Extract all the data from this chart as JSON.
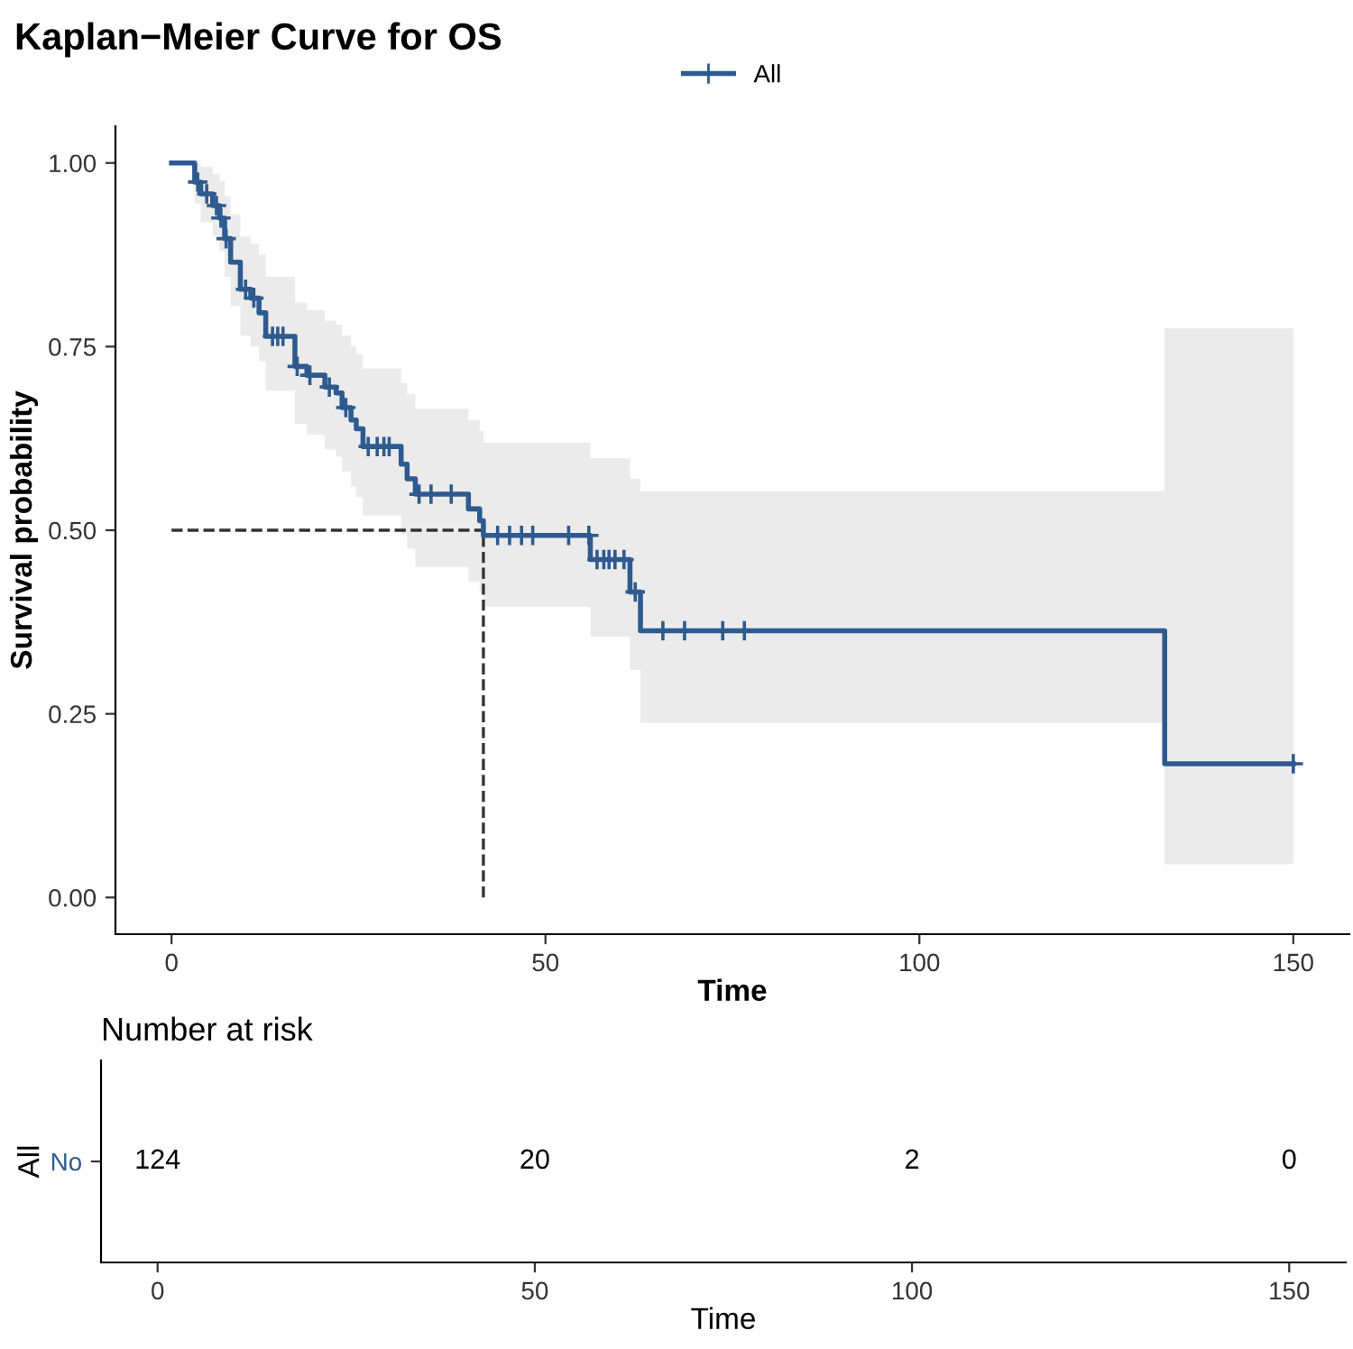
{
  "chart_data": [
    {
      "type": "step",
      "title": "Kaplan−Meier Curve for OS",
      "xlabel": "Time",
      "ylabel": "Survival probability",
      "xlim": [
        -7.5,
        157.5
      ],
      "xticks": [
        0,
        50,
        100,
        150
      ],
      "ylim": [
        -0.05,
        1.05
      ],
      "yticks": [
        {
          "value": 0,
          "label": "0.00"
        },
        {
          "value": 0.25,
          "label": "0.25"
        },
        {
          "value": 0.5,
          "label": "0.50"
        },
        {
          "value": 0.75,
          "label": "0.75"
        },
        {
          "value": 1,
          "label": "1.00"
        }
      ],
      "grid": false,
      "legend": "top",
      "line_style": "solid",
      "series": [
        {
          "name": "All",
          "type": "step",
          "color": "#2e5b8f",
          "x": [
            0,
            3.1,
            3.9,
            5.5,
            6.4,
            7.1,
            7.9,
            9.2,
            10.6,
            11.7,
            12.6,
            16.5,
            18.1,
            20.5,
            22.0,
            22.8,
            24.0,
            24.7,
            25.6,
            30.7,
            31.5,
            32.6,
            39.7,
            41.2,
            41.7,
            56.0,
            61.3,
            62.7,
            132.8,
            150
          ],
          "values": [
            1.0,
            0.974,
            0.958,
            0.942,
            0.925,
            0.897,
            0.865,
            0.828,
            0.816,
            0.796,
            0.764,
            0.723,
            0.711,
            0.695,
            0.687,
            0.667,
            0.65,
            0.638,
            0.614,
            0.59,
            0.57,
            0.549,
            0.529,
            0.513,
            0.493,
            0.46,
            0.416,
            0.363,
            0.182,
            0.182
          ],
          "lower": [
            1.0,
            0.945,
            0.92,
            0.9,
            0.88,
            0.845,
            0.805,
            0.765,
            0.75,
            0.73,
            0.69,
            0.645,
            0.63,
            0.61,
            0.6,
            0.58,
            0.56,
            0.545,
            0.52,
            0.495,
            0.475,
            0.45,
            0.43,
            0.415,
            0.396,
            0.355,
            0.31,
            0.238,
            0.045,
            0.045
          ],
          "upper": [
            1.0,
            1.0,
            0.995,
            0.985,
            0.975,
            0.955,
            0.93,
            0.9,
            0.89,
            0.875,
            0.845,
            0.81,
            0.8,
            0.785,
            0.78,
            0.765,
            0.75,
            0.74,
            0.72,
            0.7,
            0.685,
            0.665,
            0.65,
            0.635,
            0.619,
            0.598,
            0.57,
            0.553,
            0.775,
            0.775
          ]
        },
        {
          "type": "scatter",
          "color": "#2e5b8f",
          "marker": "cross",
          "x": [
            3.5,
            4.7,
            6.0,
            6.6,
            7.3,
            9.9,
            11.0,
            13.5,
            14.2,
            14.9,
            16.8,
            18.5,
            21.1,
            23.3,
            26.3,
            27.5,
            28.4,
            29.1,
            33.1,
            34.7,
            37.4,
            43.6,
            45.2,
            46.8,
            48.3,
            53.1,
            55.8,
            56.9,
            57.8,
            58.5,
            59.3,
            60.5,
            62.0,
            65.7,
            68.6,
            73.7,
            76.6,
            150
          ],
          "values": [
            0.974,
            0.958,
            0.942,
            0.925,
            0.897,
            0.828,
            0.816,
            0.764,
            0.764,
            0.764,
            0.723,
            0.711,
            0.695,
            0.667,
            0.614,
            0.614,
            0.614,
            0.614,
            0.549,
            0.549,
            0.549,
            0.493,
            0.493,
            0.493,
            0.493,
            0.493,
            0.493,
            0.46,
            0.46,
            0.46,
            0.46,
            0.46,
            0.416,
            0.363,
            0.363,
            0.363,
            0.363,
            0.182
          ]
        }
      ],
      "ref_lines": [
        {
          "axis": "x",
          "value": 41.7,
          "line_style": "dashed",
          "color": "#333333"
        },
        {
          "axis": "y",
          "value": 0.5,
          "line_style": "dashed",
          "color": "#333333"
        }
      ]
    },
    {
      "type": "heatmap",
      "title": "Number at risk",
      "xlabel": "Time",
      "ylabel": "All",
      "categories": [
        "0",
        "50",
        "100",
        "150"
      ],
      "y_categories": [
        "No"
      ],
      "color": "#2e5b8f",
      "cells": [
        [
          124,
          20,
          2,
          0
        ]
      ],
      "data_labels": true
    }
  ]
}
